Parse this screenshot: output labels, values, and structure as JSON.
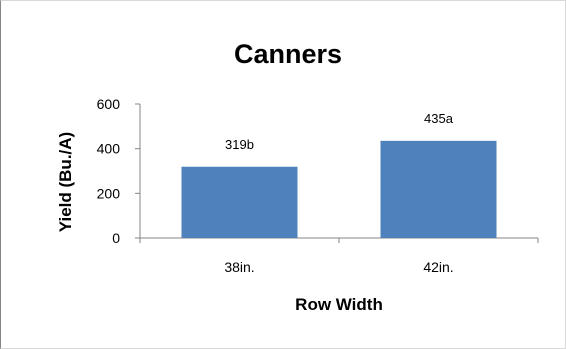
{
  "chart_data": {
    "type": "bar",
    "title": "Canners",
    "xlabel": "Row Width",
    "ylabel": "Yield (Bu./A)",
    "categories": [
      "38in.",
      "42in."
    ],
    "values": [
      319,
      435
    ],
    "data_labels": [
      "319b",
      "435a"
    ],
    "ylim": [
      0,
      600
    ],
    "yticks": [
      0,
      200,
      400,
      600
    ],
    "grid": false,
    "legend": "none",
    "colors": {
      "bar": "#4f81bd",
      "axis": "#868686"
    }
  }
}
